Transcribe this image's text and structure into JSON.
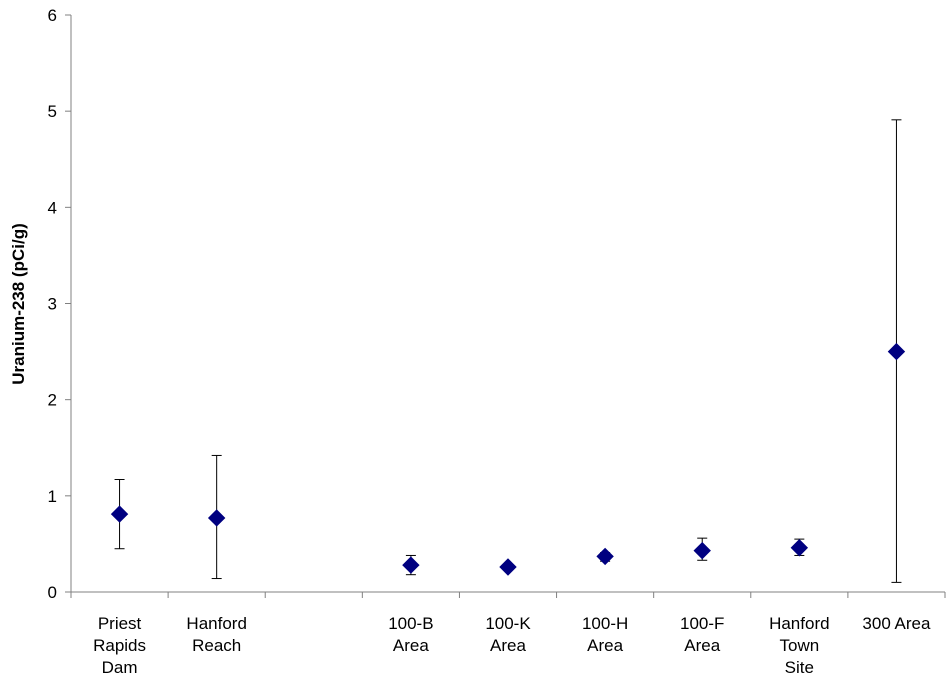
{
  "chart_data": {
    "type": "scatter",
    "ylabel": "Uranium-238 (pCi/g)",
    "xlabel": "",
    "ylim": [
      0,
      6
    ],
    "yticks": [
      "0",
      "1",
      "2",
      "3",
      "4",
      "5",
      "6"
    ],
    "grid": false,
    "marker": "diamond",
    "colors": {
      "marker": "#000080",
      "axis": "#808080",
      "errorbar": "#000000"
    },
    "categories": [
      [
        "Priest",
        "Rapids",
        "Dam"
      ],
      [
        "Hanford",
        "Reach"
      ],
      [],
      [
        "100-B",
        "Area"
      ],
      [
        "100-K",
        "Area"
      ],
      [
        "100-H",
        "Area"
      ],
      [
        "100-F",
        "Area"
      ],
      [
        "Hanford",
        "Town",
        "Site"
      ],
      [
        "300 Area"
      ]
    ],
    "points": [
      {
        "category_index": 0,
        "value": 0.81,
        "low": 0.45,
        "high": 1.17
      },
      {
        "category_index": 1,
        "value": 0.77,
        "low": 0.14,
        "high": 1.42
      },
      {
        "category_index": 3,
        "value": 0.28,
        "low": 0.18,
        "high": 0.38
      },
      {
        "category_index": 4,
        "value": 0.26,
        "low": 0.26,
        "high": 0.26
      },
      {
        "category_index": 5,
        "value": 0.37,
        "low": 0.32,
        "high": 0.41
      },
      {
        "category_index": 6,
        "value": 0.43,
        "low": 0.33,
        "high": 0.56
      },
      {
        "category_index": 7,
        "value": 0.46,
        "low": 0.38,
        "high": 0.55
      },
      {
        "category_index": 8,
        "value": 2.5,
        "low": 0.1,
        "high": 4.91
      }
    ]
  }
}
